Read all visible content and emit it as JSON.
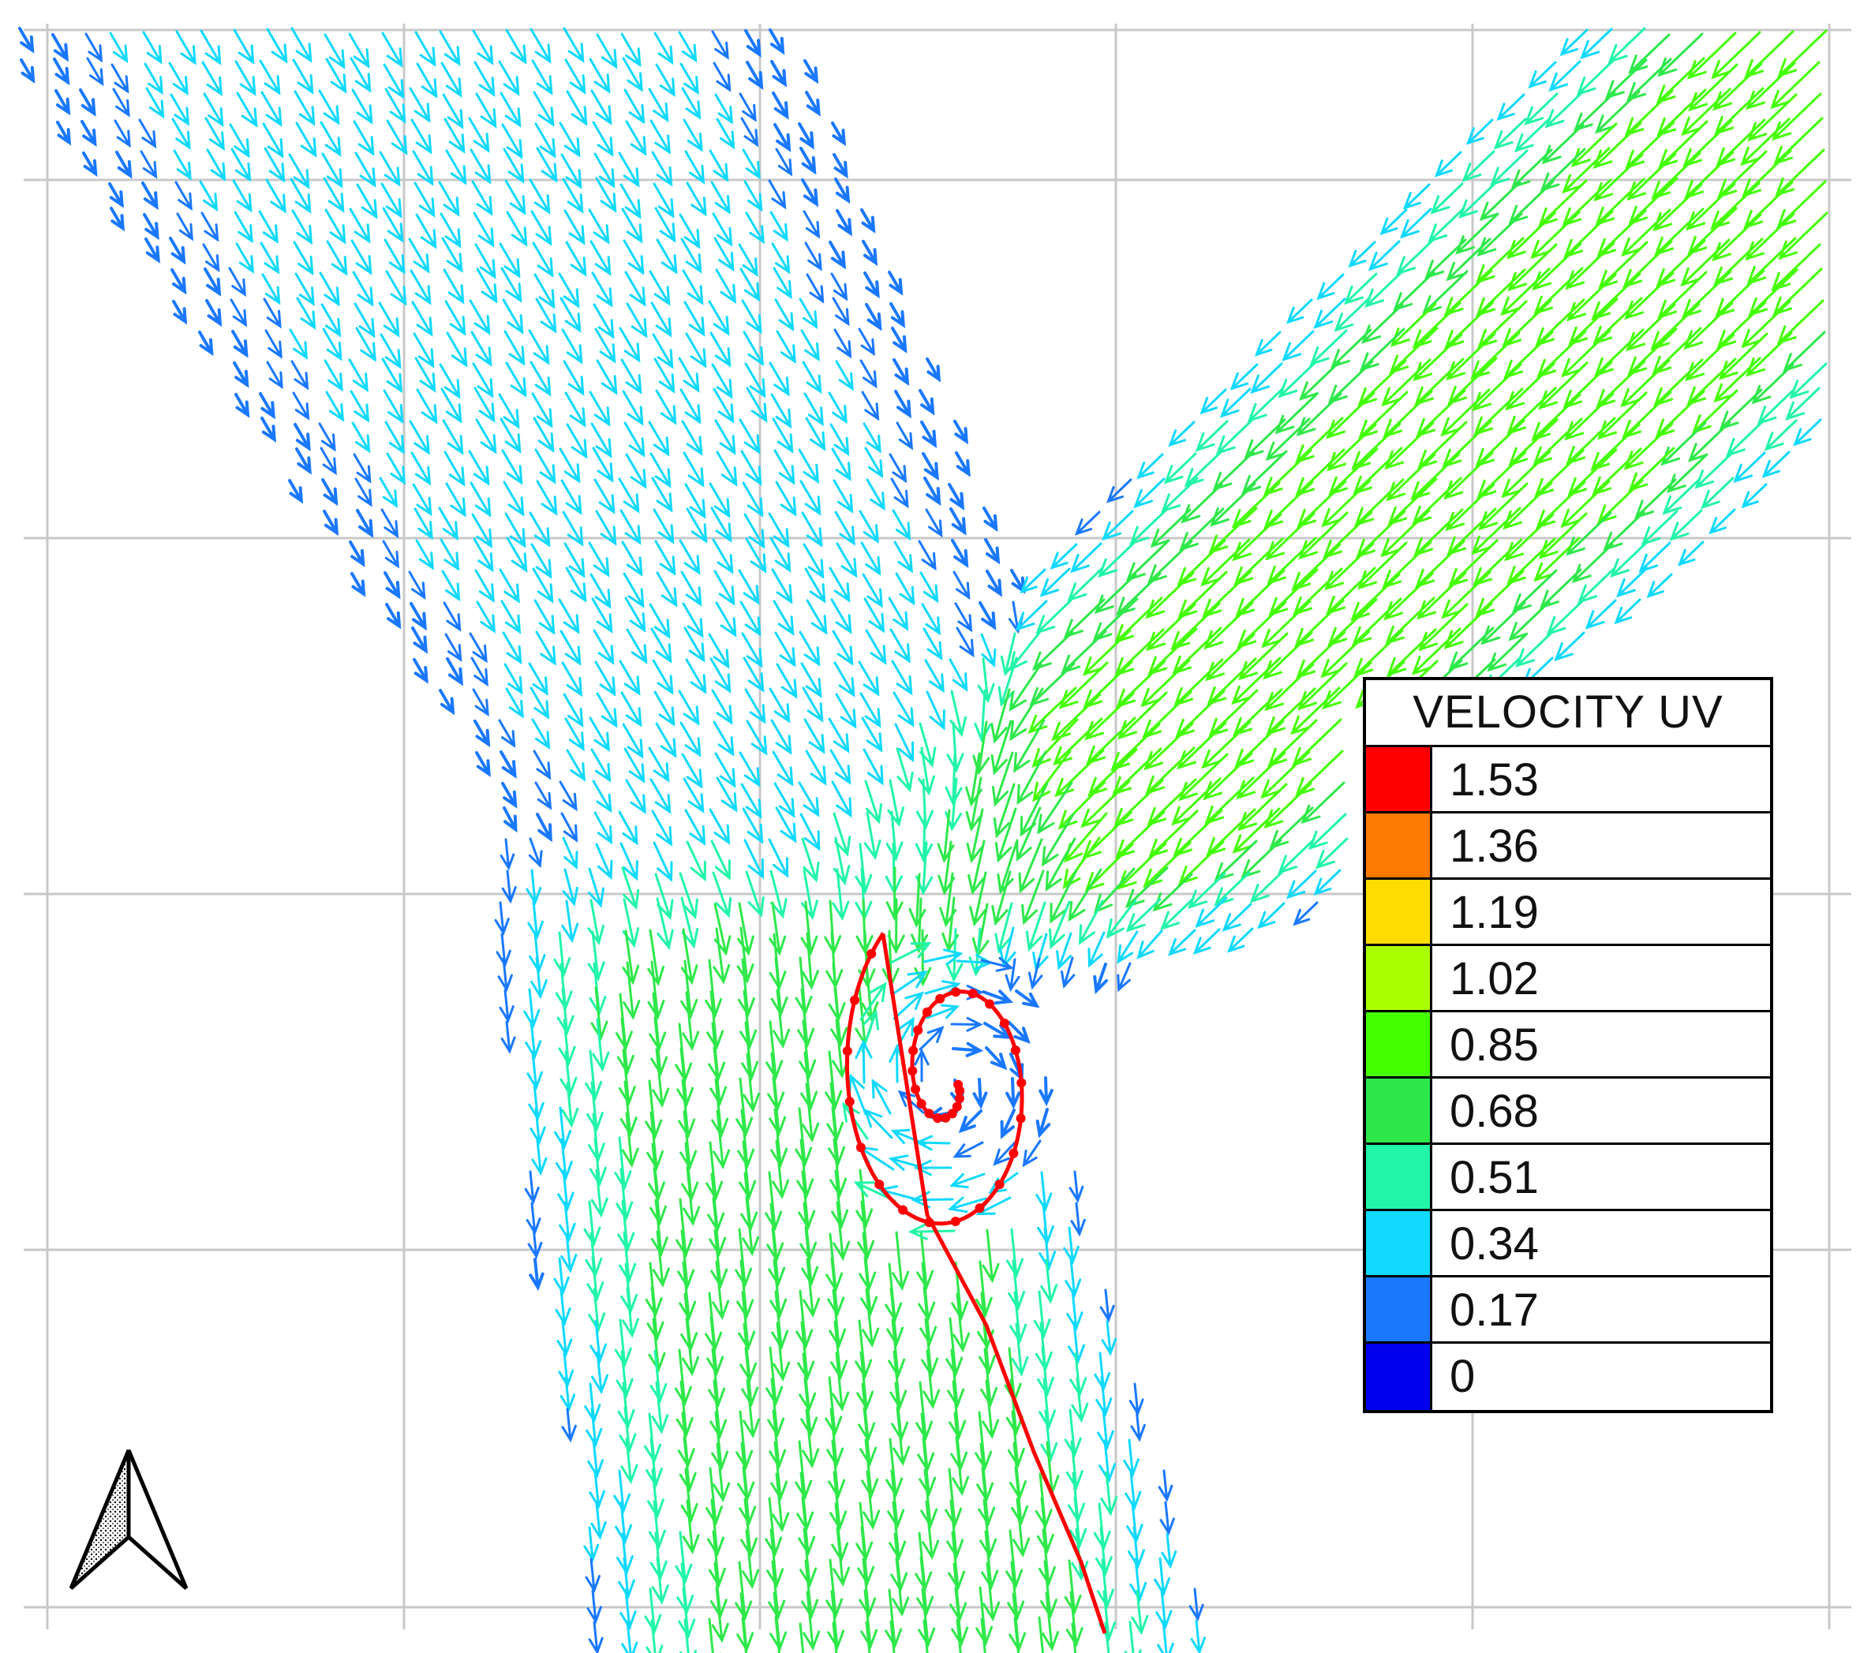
{
  "legend": {
    "title": "VELOCITY UV",
    "entries": [
      {
        "label": "1.53",
        "color": "#ff0000"
      },
      {
        "label": "1.36",
        "color": "#ff7a00"
      },
      {
        "label": "1.19",
        "color": "#ffdd00"
      },
      {
        "label": "1.02",
        "color": "#aaff00"
      },
      {
        "label": "0.85",
        "color": "#44ff00"
      },
      {
        "label": "0.68",
        "color": "#2ee84a"
      },
      {
        "label": "0.51",
        "color": "#22f5a8"
      },
      {
        "label": "0.34",
        "color": "#11d9ff"
      },
      {
        "label": "0.17",
        "color": "#1a78ff"
      },
      {
        "label": "0",
        "color": "#0000ee"
      }
    ]
  },
  "colors": {
    "grid": "#c8c8c8",
    "vortex_trace": "#ff0000",
    "north_arrow": "#000000"
  },
  "icons": {
    "north_arrow": "north-arrow-icon"
  }
}
